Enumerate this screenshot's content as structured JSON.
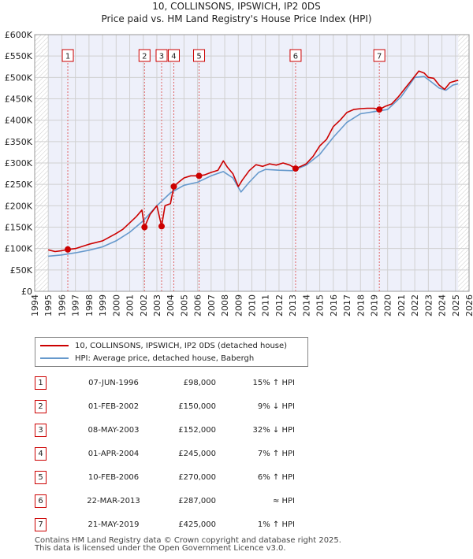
{
  "chart_data": {
    "type": "line",
    "title": "10, COLLINSONS, IPSWICH, IP2 0DS",
    "subtitle": "Price paid vs. HM Land Registry's House Price Index (HPI)",
    "ylim": [
      0,
      600000
    ],
    "xlim": [
      1994.0,
      2026.0
    ],
    "y_ticks": [
      0,
      50000,
      100000,
      150000,
      200000,
      250000,
      300000,
      350000,
      400000,
      450000,
      500000,
      550000,
      600000
    ],
    "y_tick_labels": [
      "£0",
      "£50K",
      "£100K",
      "£150K",
      "£200K",
      "£250K",
      "£300K",
      "£350K",
      "£400K",
      "£450K",
      "£500K",
      "£550K",
      "£600K"
    ],
    "x_ticks": [
      1994,
      1995,
      1996,
      1997,
      1998,
      1999,
      2000,
      2001,
      2002,
      2003,
      2004,
      2005,
      2006,
      2007,
      2008,
      2009,
      2010,
      2011,
      2012,
      2013,
      2014,
      2015,
      2016,
      2017,
      2018,
      2019,
      2020,
      2021,
      2022,
      2023,
      2024,
      2025,
      2026
    ],
    "grid": true,
    "data_region_years": [
      1995.0,
      2025.2
    ],
    "series": [
      {
        "name": "10, COLLINSONS, IPSWICH, IP2 0DS (detached house)",
        "color": "#cc0000",
        "x": [
          1995.0,
          1995.5,
          1996.0,
          1996.44,
          1997.0,
          1998.0,
          1999.0,
          2000.0,
          2000.5,
          2001.0,
          2001.5,
          2001.9,
          2002.09,
          2002.5,
          2003.0,
          2003.35,
          2003.6,
          2004.0,
          2004.25,
          2004.6,
          2005.0,
          2005.5,
          2006.11,
          2006.5,
          2007.0,
          2007.5,
          2007.9,
          2008.2,
          2008.6,
          2009.0,
          2009.3,
          2009.8,
          2010.3,
          2010.8,
          2011.3,
          2011.8,
          2012.3,
          2012.8,
          2013.22,
          2013.6,
          2014.0,
          2014.5,
          2015.0,
          2015.5,
          2016.0,
          2016.5,
          2017.0,
          2017.5,
          2018.0,
          2018.5,
          2019.0,
          2019.39,
          2019.8,
          2020.3,
          2020.8,
          2021.3,
          2021.8,
          2022.3,
          2022.7,
          2023.0,
          2023.4,
          2023.8,
          2024.2,
          2024.6,
          2025.0,
          2025.2
        ],
        "y": [
          97000,
          93000,
          95000,
          98000,
          100000,
          110000,
          118000,
          135000,
          145000,
          160000,
          175000,
          190000,
          150000,
          180000,
          200000,
          152000,
          200000,
          205000,
          245000,
          255000,
          265000,
          270000,
          270000,
          272000,
          278000,
          283000,
          305000,
          290000,
          275000,
          245000,
          260000,
          282000,
          296000,
          292000,
          298000,
          295000,
          300000,
          295000,
          287000,
          292000,
          298000,
          315000,
          340000,
          355000,
          385000,
          400000,
          418000,
          425000,
          427000,
          428000,
          428000,
          425000,
          432000,
          438000,
          455000,
          475000,
          495000,
          515000,
          510000,
          500000,
          498000,
          482000,
          472000,
          488000,
          492000,
          493000
        ]
      },
      {
        "name": "HPI: Average price, detached house, Babergh",
        "color": "#6699cc",
        "x": [
          1995.0,
          1996.0,
          1997.0,
          1998.0,
          1999.0,
          2000.0,
          2001.0,
          2002.0,
          2003.0,
          2004.0,
          2005.0,
          2006.0,
          2007.0,
          2007.9,
          2008.6,
          2009.2,
          2009.8,
          2010.5,
          2011.0,
          2012.0,
          2013.0,
          2014.0,
          2015.0,
          2016.0,
          2017.0,
          2018.0,
          2019.0,
          2020.0,
          2021.0,
          2022.0,
          2022.7,
          2023.2,
          2023.8,
          2024.3,
          2024.8,
          2025.2
        ],
        "y": [
          82000,
          85000,
          90000,
          96000,
          104000,
          118000,
          138000,
          165000,
          200000,
          230000,
          248000,
          255000,
          270000,
          280000,
          265000,
          232000,
          255000,
          278000,
          285000,
          283000,
          282000,
          295000,
          320000,
          360000,
          395000,
          415000,
          420000,
          425000,
          455000,
          500000,
          502000,
          490000,
          475000,
          470000,
          482000,
          485000
        ]
      }
    ],
    "sales": [
      {
        "n": "1",
        "year": 1996.44,
        "price": 98000
      },
      {
        "n": "2",
        "year": 2002.09,
        "price": 150000
      },
      {
        "n": "3",
        "year": 2003.35,
        "price": 152000
      },
      {
        "n": "4",
        "year": 2004.25,
        "price": 245000
      },
      {
        "n": "5",
        "year": 2006.11,
        "price": 270000
      },
      {
        "n": "6",
        "year": 2013.22,
        "price": 287000
      },
      {
        "n": "7",
        "year": 2019.39,
        "price": 425000
      }
    ]
  },
  "legend": {
    "property": "10, COLLINSONS, IPSWICH, IP2 0DS (detached house)",
    "hpi": "HPI: Average price, detached house, Babergh"
  },
  "table": [
    {
      "n": "1",
      "date": "07-JUN-1996",
      "price": "£98,000",
      "hpi": "15% ↑ HPI"
    },
    {
      "n": "2",
      "date": "01-FEB-2002",
      "price": "£150,000",
      "hpi": "9% ↓ HPI"
    },
    {
      "n": "3",
      "date": "08-MAY-2003",
      "price": "£152,000",
      "hpi": "32% ↓ HPI"
    },
    {
      "n": "4",
      "date": "01-APR-2004",
      "price": "£245,000",
      "hpi": "7% ↑ HPI"
    },
    {
      "n": "5",
      "date": "10-FEB-2006",
      "price": "£270,000",
      "hpi": "6% ↑ HPI"
    },
    {
      "n": "6",
      "date": "22-MAR-2013",
      "price": "£287,000",
      "hpi": "≈ HPI"
    },
    {
      "n": "7",
      "date": "21-MAY-2019",
      "price": "£425,000",
      "hpi": "1% ↑ HPI"
    }
  ],
  "footer": {
    "line1": "Contains HM Land Registry data © Crown copyright and database right 2025.",
    "line2": "This data is licensed under the Open Government Licence v3.0."
  }
}
